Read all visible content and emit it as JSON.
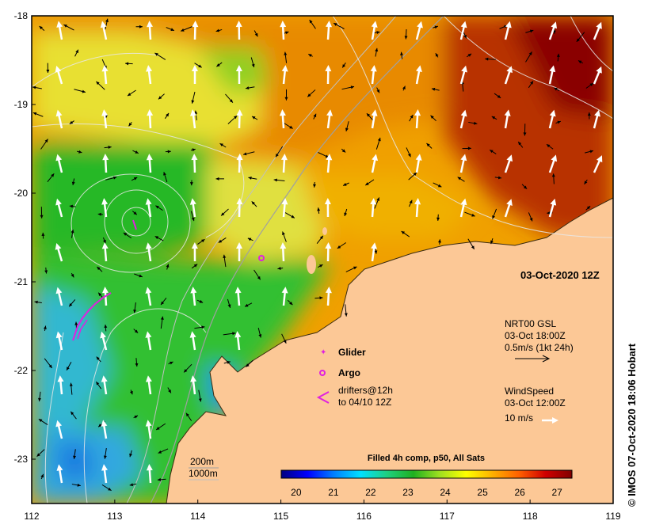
{
  "map": {
    "date_label": "03-Oct-2020 12Z",
    "x_ticks": [
      "112",
      "113",
      "114",
      "115",
      "116",
      "117",
      "118",
      "119"
    ],
    "y_ticks": [
      "-18",
      "-19",
      "-20",
      "-21",
      "-22",
      "-23"
    ],
    "x_range": [
      112,
      119
    ],
    "y_range": [
      -18,
      -23.5
    ],
    "land_color": "#fcc896",
    "legend": {
      "glider": "Glider",
      "argo": "Argo",
      "drifters_line1": "drifters@12h",
      "drifters_line2": "to 04/10 12Z",
      "marker_color": "#e020e0"
    },
    "current": {
      "line1": "NRT00 GSL",
      "line2": "03-Oct 18:00Z",
      "line3": "0.5m/s (1kt 24h)"
    },
    "wind": {
      "line1": "WindSpeed",
      "line2": "03-Oct 12:00Z",
      "line3": "10 m/s"
    },
    "isobaths": {
      "shallow": "200m",
      "deep": "1000m"
    },
    "colorbar": {
      "title": "Filled 4h comp, p50, All Sats",
      "ticks": [
        "20",
        "21",
        "22",
        "23",
        "24",
        "25",
        "26",
        "27"
      ],
      "range": [
        19.6,
        27.4
      ],
      "colors": [
        "#00007f",
        "#0000ff",
        "#0080ff",
        "#00e0ff",
        "#20d080",
        "#20b020",
        "#a0e020",
        "#ffff00",
        "#ffb000",
        "#ff6000",
        "#d00000",
        "#800000"
      ]
    },
    "credit": "IMOS 07-Oct-2020 18:06 Hobart"
  }
}
